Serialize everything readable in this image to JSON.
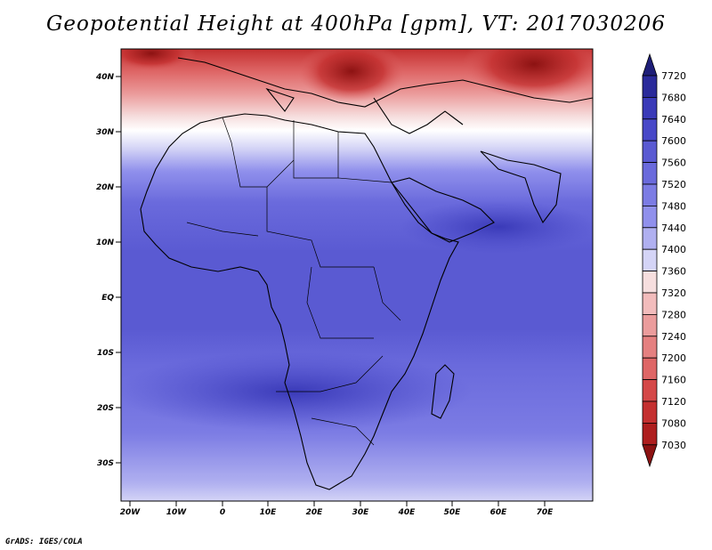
{
  "title": "Geopotential Height at 400hPa [gpm], VT: 2017030206",
  "credit": "GrADS: IGES/COLA",
  "map": {
    "lat_labels": [
      "40N",
      "30N",
      "20N",
      "10N",
      "EQ",
      "10S",
      "20S",
      "30S"
    ],
    "lon_labels": [
      "20W",
      "10W",
      "0",
      "10E",
      "20E",
      "30E",
      "40E",
      "50E",
      "60E",
      "70E"
    ],
    "extent": {
      "lon_min": -23,
      "lon_max": 80,
      "lat_min": -37,
      "lat_max": 45
    }
  },
  "colorbar": {
    "labels": [
      "7720",
      "7680",
      "7640",
      "7600",
      "7560",
      "7520",
      "7480",
      "7440",
      "7400",
      "7360",
      "7320",
      "7280",
      "7240",
      "7200",
      "7160",
      "7120",
      "7080",
      "7030"
    ],
    "colors": [
      "#1e1e78",
      "#2a2a9a",
      "#3a3ab8",
      "#4848c8",
      "#5a5ad2",
      "#6a6adc",
      "#7c7ce4",
      "#9090ec",
      "#b0b0f0",
      "#d4d4f6",
      "#f6dede",
      "#f2bcbc",
      "#eb9c9c",
      "#e58080",
      "#de6666",
      "#d44848",
      "#c43030",
      "#ae1e1e",
      "#8c1212"
    ]
  }
}
